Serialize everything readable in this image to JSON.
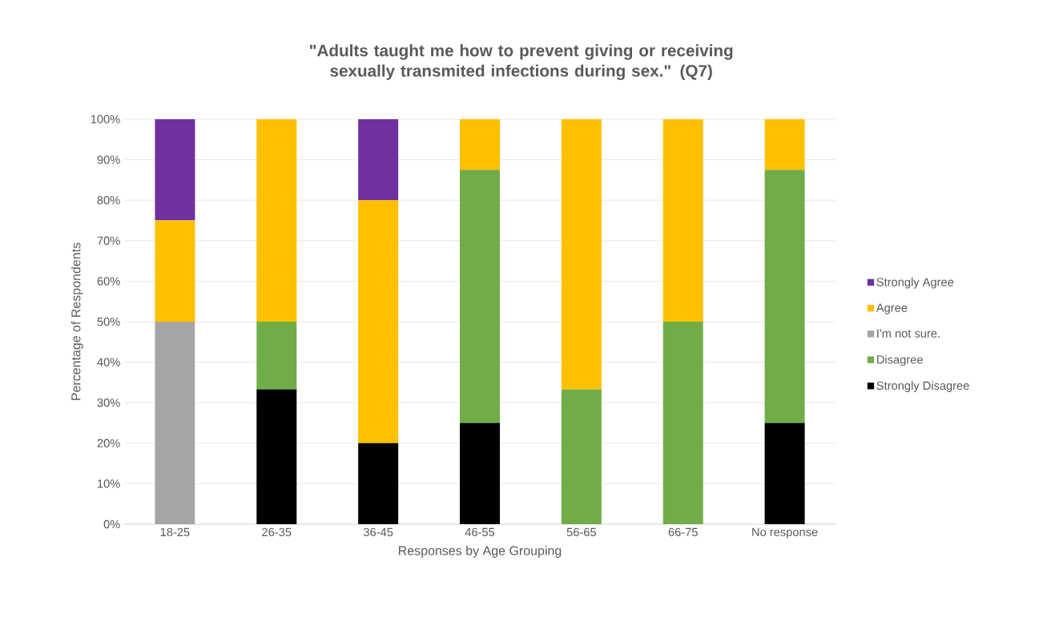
{
  "chart_data": {
    "type": "bar",
    "stacked": true,
    "title": "\"Adults taught me how to prevent giving or receiving sexually transmited infections during sex.\" (Q7)",
    "xlabel": "Responses by Age Grouping",
    "ylabel": "Percentage of Respondents",
    "categories": [
      "18-25",
      "26-35",
      "36-45",
      "46-55",
      "56-65",
      "66-75",
      "No response"
    ],
    "series": [
      {
        "name": "Strongly Disagree",
        "color": "#000000",
        "values": [
          0,
          33.3,
          20,
          25,
          0,
          0,
          25
        ]
      },
      {
        "name": "Disagree",
        "color": "#70ad47",
        "values": [
          0,
          16.7,
          0,
          62.5,
          33.3,
          50,
          62.5
        ]
      },
      {
        "name": "I'm not sure.",
        "color": "#a5a5a5",
        "values": [
          50,
          0,
          0,
          0,
          0,
          0,
          0
        ]
      },
      {
        "name": "Agree",
        "color": "#ffc000",
        "values": [
          25,
          50,
          60,
          12.5,
          66.7,
          50,
          12.5
        ]
      },
      {
        "name": "Strongly Agree",
        "color": "#7030a0",
        "values": [
          25,
          0,
          20,
          0,
          0,
          0,
          0
        ]
      }
    ],
    "ylim": [
      0,
      100
    ],
    "yticks": [
      {
        "value": 0,
        "label": "0%"
      },
      {
        "value": 10,
        "label": "10%"
      },
      {
        "value": 20,
        "label": "20%"
      },
      {
        "value": 30,
        "label": "30%"
      },
      {
        "value": 40,
        "label": "40%"
      },
      {
        "value": 50,
        "label": "50%"
      },
      {
        "value": 60,
        "label": "60%"
      },
      {
        "value": 70,
        "label": "70%"
      },
      {
        "value": 80,
        "label": "80%"
      },
      {
        "value": 90,
        "label": "90%"
      },
      {
        "value": 100,
        "label": "100%"
      }
    ],
    "grid": "y",
    "legend": "right"
  }
}
